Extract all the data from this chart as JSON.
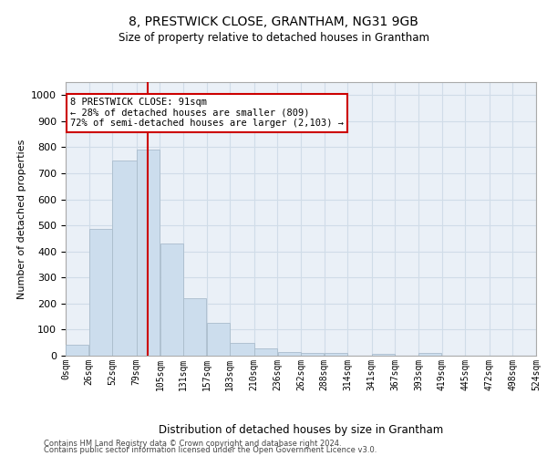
{
  "title": "8, PRESTWICK CLOSE, GRANTHAM, NG31 9GB",
  "subtitle": "Size of property relative to detached houses in Grantham",
  "xlabel": "Distribution of detached houses by size in Grantham",
  "ylabel": "Number of detached properties",
  "bar_color": "#ccdded",
  "bar_edgecolor": "#aabccc",
  "grid_color": "#d0dce8",
  "background_color": "#eaf0f7",
  "annotation_box_color": "#cc0000",
  "vline_color": "#cc0000",
  "vline_x": 91,
  "annotation_text": "8 PRESTWICK CLOSE: 91sqm\n← 28% of detached houses are smaller (809)\n72% of semi-detached houses are larger (2,103) →",
  "tick_labels": [
    "0sqm",
    "26sqm",
    "52sqm",
    "79sqm",
    "105sqm",
    "131sqm",
    "157sqm",
    "183sqm",
    "210sqm",
    "236sqm",
    "262sqm",
    "288sqm",
    "314sqm",
    "341sqm",
    "367sqm",
    "393sqm",
    "419sqm",
    "445sqm",
    "472sqm",
    "498sqm",
    "524sqm"
  ],
  "bar_edges": [
    0,
    26,
    52,
    79,
    105,
    131,
    157,
    183,
    210,
    236,
    262,
    288,
    314,
    341,
    367,
    393,
    419,
    445,
    472,
    498,
    524
  ],
  "bar_heights": [
    43,
    487,
    748,
    790,
    432,
    220,
    127,
    50,
    28,
    15,
    11,
    10,
    0,
    8,
    0,
    10,
    0,
    0,
    0,
    0
  ],
  "ylim": [
    0,
    1050
  ],
  "yticks": [
    0,
    100,
    200,
    300,
    400,
    500,
    600,
    700,
    800,
    900,
    1000
  ],
  "footer_line1": "Contains HM Land Registry data © Crown copyright and database right 2024.",
  "footer_line2": "Contains public sector information licensed under the Open Government Licence v3.0."
}
